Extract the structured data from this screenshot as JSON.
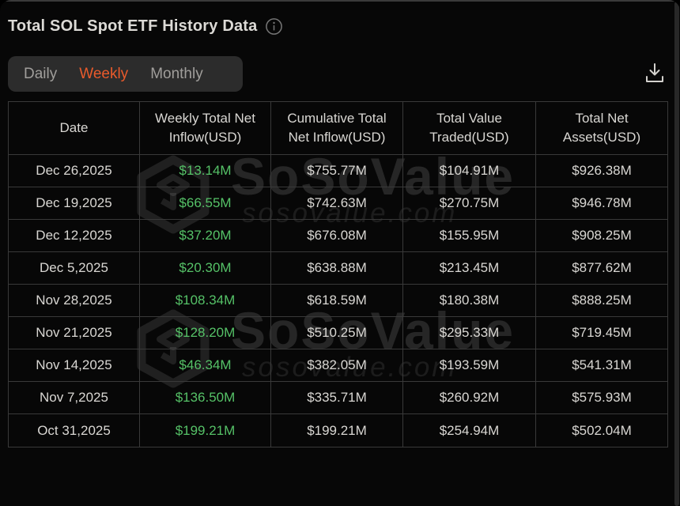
{
  "header": {
    "title": "Total SOL Spot ETF History Data"
  },
  "tabs": {
    "items": [
      {
        "label": "Daily",
        "active": false
      },
      {
        "label": "Weekly",
        "active": true
      },
      {
        "label": "Monthly",
        "active": false
      }
    ]
  },
  "colors": {
    "accent_orange": "#e95a2b",
    "positive_green": "#55c167",
    "background": "#070707",
    "tab_panel": "#2c2c2c",
    "table_border": "#393939",
    "text_primary": "#d9d7d3",
    "text_muted": "#a09e9b"
  },
  "watermark": {
    "brand": "SoSoValue",
    "domain": "sosovalue.com"
  },
  "table": {
    "columns": [
      "Date",
      "Weekly Total Net Inflow(USD)",
      "Cumulative Total Net Inflow(USD)",
      "Total Value Traded(USD)",
      "Total Net Assets(USD)"
    ],
    "rows": [
      [
        "Dec 26,2025",
        "$13.14M",
        "$755.77M",
        "$104.91M",
        "$926.38M"
      ],
      [
        "Dec 19,2025",
        "$66.55M",
        "$742.63M",
        "$270.75M",
        "$946.78M"
      ],
      [
        "Dec 12,2025",
        "$37.20M",
        "$676.08M",
        "$155.95M",
        "$908.25M"
      ],
      [
        "Dec 5,2025",
        "$20.30M",
        "$638.88M",
        "$213.45M",
        "$877.62M"
      ],
      [
        "Nov 28,2025",
        "$108.34M",
        "$618.59M",
        "$180.38M",
        "$888.25M"
      ],
      [
        "Nov 21,2025",
        "$128.20M",
        "$510.25M",
        "$295.33M",
        "$719.45M"
      ],
      [
        "Nov 14,2025",
        "$46.34M",
        "$382.05M",
        "$193.59M",
        "$541.31M"
      ],
      [
        "Nov 7,2025",
        "$136.50M",
        "$335.71M",
        "$260.92M",
        "$575.93M"
      ],
      [
        "Oct 31,2025",
        "$199.21M",
        "$199.21M",
        "$254.94M",
        "$502.04M"
      ]
    ]
  }
}
